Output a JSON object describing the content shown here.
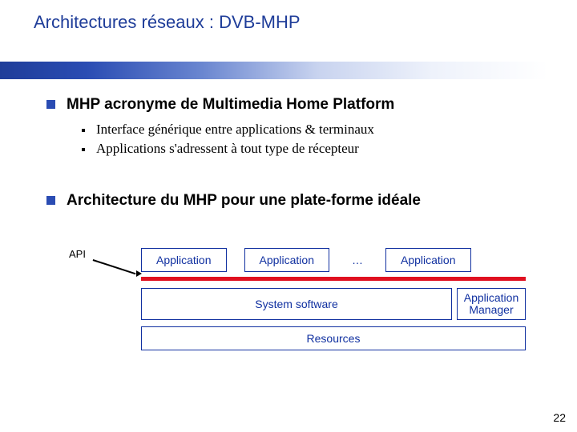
{
  "title": {
    "text": "Architectures réseaux : DVB-MHP",
    "color": "#1f3d99",
    "fontsize": 22
  },
  "band": {
    "gradient_from": "#1f3d99",
    "gradient_to": "#ffffff",
    "height": 22
  },
  "bullets": {
    "square_color": "#2a4cb3",
    "items": [
      {
        "text": "MHP acronyme de Multimedia Home Platform",
        "sub": [
          "Interface générique entre applications & terminaux",
          "Applications s'adressent à tout type de récepteur"
        ]
      },
      {
        "text": "Architecture du MHP pour une plate-forme idéale",
        "sub": []
      }
    ]
  },
  "diagram": {
    "api_label": "API",
    "api_line_color": "#e01020",
    "border_color": "#1030a0",
    "text_color": "#1030a0",
    "apps": {
      "label": "Application",
      "ellipsis": "…",
      "count": 4
    },
    "system_software": "System software",
    "app_manager_line1": "Application",
    "app_manager_line2": "Manager",
    "resources": "Resources"
  },
  "page_number": "22"
}
